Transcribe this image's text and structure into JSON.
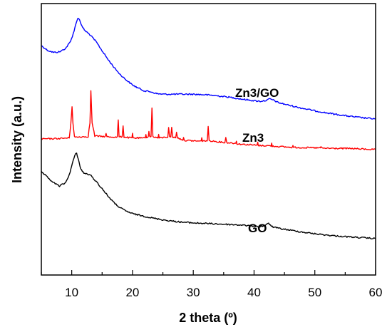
{
  "chart_data": {
    "type": "line",
    "xlabel": "2 theta (º)",
    "ylabel": "Intensity (a.u.)",
    "xlim": [
      5,
      60
    ],
    "xticks": [
      10,
      20,
      30,
      40,
      50,
      60
    ],
    "y_ticks_shown": false,
    "grid": false,
    "legend": "none",
    "series": [
      {
        "name": "Zn3/GO",
        "color": "#0000ff",
        "x": [
          5,
          6,
          7,
          8,
          9,
          9.8,
          10.4,
          10.8,
          11.0,
          11.3,
          11.7,
          12.2,
          13,
          14,
          15,
          16,
          17,
          18,
          19,
          20,
          21,
          22,
          23,
          24,
          25,
          26,
          28,
          30,
          32,
          34,
          36,
          38,
          40,
          41,
          42,
          42.6,
          43.2,
          44,
          46,
          48,
          50,
          52,
          54,
          56,
          58,
          60
        ],
        "y": [
          0.845,
          0.828,
          0.82,
          0.822,
          0.835,
          0.86,
          0.9,
          0.935,
          0.947,
          0.94,
          0.915,
          0.9,
          0.885,
          0.86,
          0.826,
          0.793,
          0.764,
          0.738,
          0.718,
          0.7,
          0.688,
          0.678,
          0.675,
          0.668,
          0.666,
          0.666,
          0.666,
          0.666,
          0.664,
          0.66,
          0.655,
          0.648,
          0.642,
          0.64,
          0.643,
          0.649,
          0.644,
          0.635,
          0.624,
          0.614,
          0.605,
          0.597,
          0.59,
          0.584,
          0.579,
          0.575
        ]
      },
      {
        "name": "Zn3",
        "color": "#ff0000",
        "x": [
          5,
          8,
          9.6,
          9.85,
          10.05,
          10.2,
          10.45,
          12.7,
          13.0,
          13.15,
          13.35,
          13.8,
          15.5,
          15.65,
          15.8,
          17.5,
          17.65,
          17.8,
          18.3,
          18.45,
          18.6,
          19.9,
          20.0,
          20.1,
          22.1,
          22.2,
          22.3,
          22.6,
          22.7,
          22.8,
          23.05,
          23.2,
          23.35,
          24.2,
          24.3,
          24.4,
          25.8,
          25.95,
          26.1,
          26.3,
          26.45,
          26.6,
          27.1,
          27.25,
          27.4,
          28.3,
          28.4,
          28.5,
          31.3,
          31.4,
          31.5,
          32.3,
          32.45,
          32.6,
          35.2,
          35.35,
          35.5,
          37,
          37.1,
          37.2,
          40.5,
          40.6,
          40.7,
          42.8,
          42.9,
          43.0,
          46.3,
          46.4,
          46.5,
          50.9,
          51.0,
          51.1,
          56,
          60
        ],
        "y": [
          0.501,
          0.503,
          0.505,
          0.56,
          0.622,
          0.56,
          0.508,
          0.51,
          0.56,
          0.68,
          0.56,
          0.512,
          0.51,
          0.52,
          0.509,
          0.508,
          0.572,
          0.508,
          0.51,
          0.551,
          0.508,
          0.505,
          0.52,
          0.505,
          0.504,
          0.52,
          0.506,
          0.51,
          0.531,
          0.51,
          0.51,
          0.615,
          0.51,
          0.505,
          0.518,
          0.505,
          0.508,
          0.545,
          0.508,
          0.51,
          0.542,
          0.508,
          0.505,
          0.528,
          0.505,
          0.498,
          0.508,
          0.496,
          0.493,
          0.508,
          0.493,
          0.495,
          0.545,
          0.495,
          0.488,
          0.506,
          0.488,
          0.485,
          0.495,
          0.483,
          0.478,
          0.488,
          0.477,
          0.476,
          0.484,
          0.475,
          0.47,
          0.478,
          0.47,
          0.468,
          0.474,
          0.467,
          0.466,
          0.462
        ]
      },
      {
        "name": "GO",
        "color": "#000000",
        "x": [
          5,
          6,
          7,
          8,
          9,
          9.6,
          10.1,
          10.5,
          10.8,
          11.1,
          11.5,
          12,
          12.6,
          13.2,
          14,
          15,
          16,
          17,
          18,
          19,
          20,
          22,
          24,
          26,
          28,
          30,
          32,
          34,
          36,
          38,
          40,
          41,
          41.8,
          42.4,
          43.0,
          44,
          46,
          48,
          50,
          52,
          54,
          56,
          58,
          60
        ],
        "y": [
          0.38,
          0.36,
          0.34,
          0.328,
          0.34,
          0.37,
          0.41,
          0.44,
          0.45,
          0.425,
          0.39,
          0.375,
          0.372,
          0.365,
          0.345,
          0.318,
          0.29,
          0.265,
          0.247,
          0.235,
          0.226,
          0.216,
          0.207,
          0.2,
          0.195,
          0.192,
          0.19,
          0.188,
          0.186,
          0.184,
          0.179,
          0.178,
          0.182,
          0.19,
          0.178,
          0.172,
          0.165,
          0.158,
          0.152,
          0.147,
          0.143,
          0.14,
          0.137,
          0.134
        ]
      }
    ]
  }
}
